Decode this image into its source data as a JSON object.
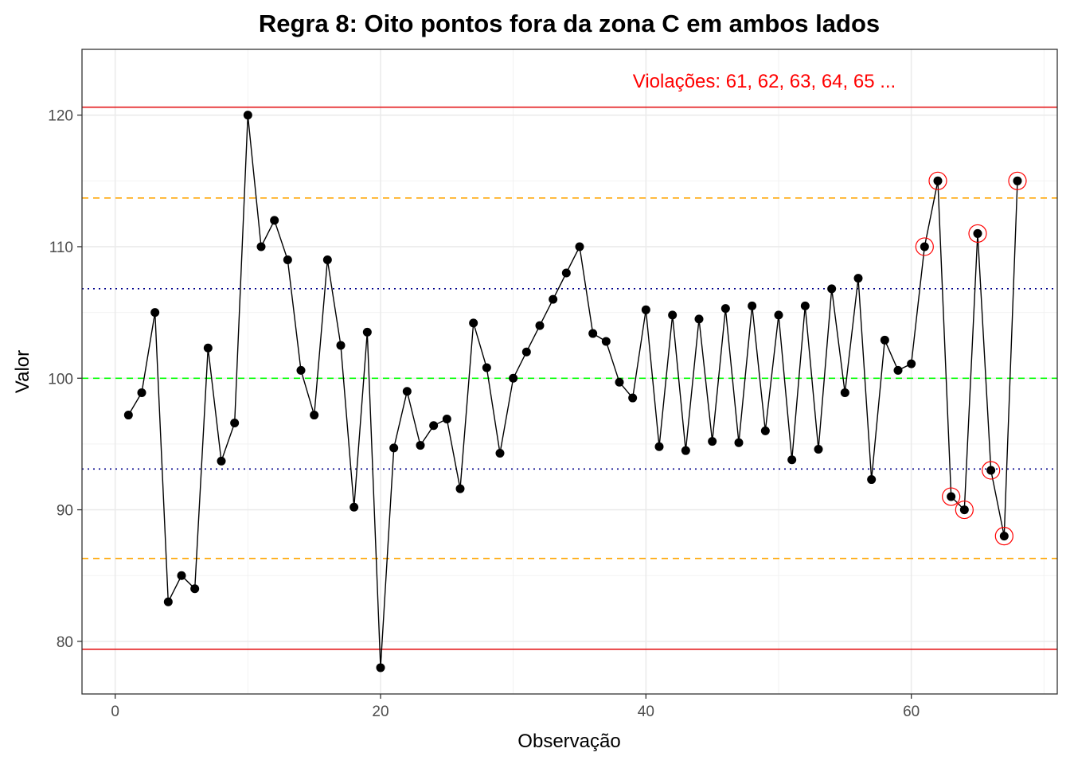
{
  "chart_data": {
    "type": "line",
    "title": "Regra 8: Oito pontos fora da zona C em ambos lados",
    "xlabel": "Observação",
    "ylabel": "Valor",
    "xlim": [
      -2.5,
      71
    ],
    "ylim": [
      76,
      125
    ],
    "x_ticks": [
      0,
      20,
      40,
      60
    ],
    "y_ticks": [
      80,
      90,
      100,
      110,
      120
    ],
    "grid": true,
    "reference_lines": [
      {
        "kind": "ucl",
        "y": 120.6,
        "color": "#e41a1c",
        "style": "solid"
      },
      {
        "kind": "lcl",
        "y": 79.4,
        "color": "#e41a1c",
        "style": "solid"
      },
      {
        "kind": "zone-a-upper",
        "y": 113.7,
        "color": "#ffa500",
        "style": "dashed"
      },
      {
        "kind": "zone-a-lower",
        "y": 86.3,
        "color": "#ffa500",
        "style": "dashed"
      },
      {
        "kind": "zone-c-upper",
        "y": 106.8,
        "color": "#00008b",
        "style": "dotted"
      },
      {
        "kind": "zone-c-lower",
        "y": 93.1,
        "color": "#00008b",
        "style": "dotted"
      },
      {
        "kind": "center",
        "y": 100,
        "color": "#00ff00",
        "style": "dashed"
      }
    ],
    "annotation": {
      "text": "Violações: 61, 62, 63, 64, 65 ...",
      "color": "#ff0000"
    },
    "series_color": "#000000",
    "highlight_color": "#ff0000",
    "x": [
      1,
      2,
      3,
      4,
      5,
      6,
      7,
      8,
      9,
      10,
      11,
      12,
      13,
      14,
      15,
      16,
      17,
      18,
      19,
      20,
      21,
      22,
      23,
      24,
      25,
      26,
      27,
      28,
      29,
      30,
      31,
      32,
      33,
      34,
      35,
      36,
      37,
      38,
      39,
      40,
      41,
      42,
      43,
      44,
      45,
      46,
      47,
      48,
      49,
      50,
      51,
      52,
      53,
      54,
      55,
      56,
      57,
      58,
      59,
      60,
      61,
      62,
      63,
      64,
      65,
      66,
      67,
      68
    ],
    "y": [
      97.2,
      98.9,
      105.0,
      83.0,
      85.0,
      84.0,
      102.3,
      93.7,
      96.6,
      120.0,
      110.0,
      112.0,
      109.0,
      100.6,
      97.2,
      109.0,
      102.5,
      90.2,
      103.5,
      78.0,
      94.7,
      99.0,
      94.9,
      96.4,
      96.9,
      91.6,
      104.2,
      100.8,
      94.3,
      100.0,
      102.0,
      104.0,
      106.0,
      108.0,
      110.0,
      103.4,
      102.8,
      99.7,
      98.5,
      105.2,
      94.8,
      104.8,
      94.5,
      104.5,
      95.2,
      105.3,
      95.1,
      105.5,
      96.0,
      104.8,
      93.8,
      105.5,
      94.6,
      106.8,
      98.9,
      107.6,
      92.3,
      102.9,
      100.6,
      101.1,
      110.0,
      115.0,
      91.0,
      90.0,
      111.0,
      93.0,
      88.0,
      115.0
    ],
    "violations": [
      61,
      62,
      63,
      64,
      65,
      66,
      67,
      68
    ]
  }
}
